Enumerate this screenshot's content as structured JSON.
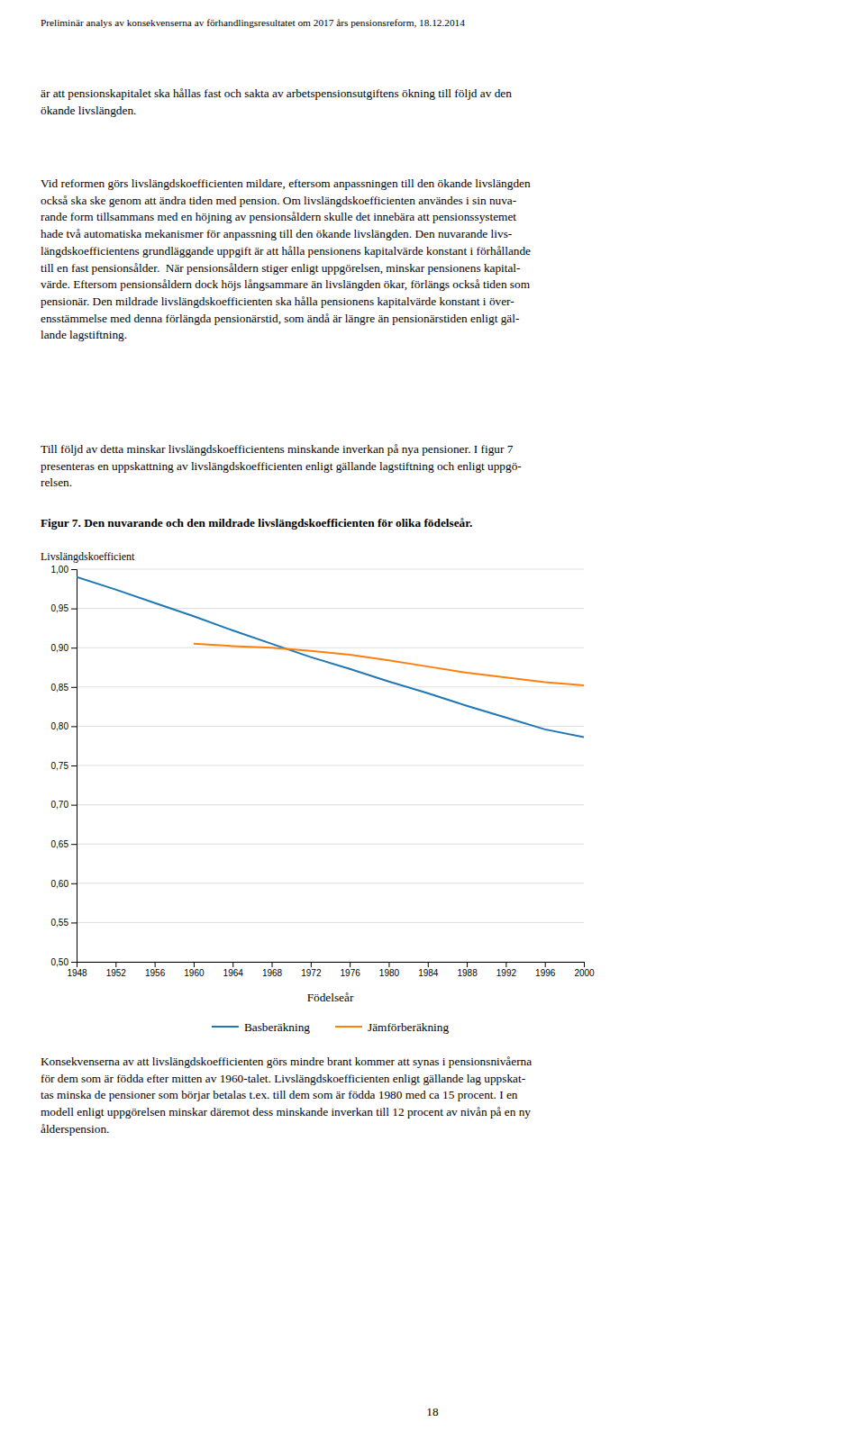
{
  "page": {
    "header": "Preliminär analys av konsekvenserna av förhandlingsresultatet om 2017 års pensionsreform, 18.12.2014",
    "text_before_chart": [
      [
        "är att pensionskapitalet ska hållas fast och sakta av arbetspensionsutgiftens ökning till följd av den",
        "ökande livslängden."
      ],
      [
        "Vid reformen görs livslängdskoefficienten mildare, eftersom anpassningen till den ökande livslängden",
        "också ska ske genom att ändra tiden med pension. Om livslängdskoefficienten användes i sin nuva-",
        "rande form tillsammans med en höjning av pensionsåldern skulle det innebära att pensionssystemet",
        "hade två automatiska mekanismer för anpassning till den ökande livslängden. Den nuvarande livs-",
        "längdskoefficientens grundläggande uppgift är att hålla pensionens kapitalvärde konstant i förhållande",
        "till en fast pensionsålder.  När pensionsåldern stiger enligt uppgörelsen, minskar pensionens kapital-",
        "värde. Eftersom pensionsåldern dock höjs långsammare än livslängden ökar, förlängs också tiden som",
        "pensionär. Den mildrade livslängdskoefficienten ska hålla pensionens kapitalvärde konstant i över-",
        "ensstämmelse med denna förlängda pensionärstid, som ändå är längre än pensionärstiden enligt gäl-",
        "lande lagstiftning."
      ],
      [
        "Till följd av detta minskar livslängdskoefficientens minskande inverkan på nya pensioner. I figur 7",
        "presenteras en uppskattning av livslängdskoefficienten enligt gällande lagstiftning och enligt uppgö-",
        "relsen."
      ]
    ],
    "text_after_chart": [
      [
        "Konsekvenserna av att livslängdskoefficienten görs mindre brant kommer att synas i pensionsnivåerna",
        "för dem som är födda efter mitten av 1960-talet. Livslängdskoefficienten enligt gällande lag uppskat-",
        "tas minska de pensioner som börjar betalas t.ex. till dem som är födda 1980 med ca 15 procent. I en",
        "modell enligt uppgörelsen minskar däremot dess minskande inverkan till 12 procent av nivån på en ny",
        "ålderspension."
      ]
    ],
    "footer": "18"
  },
  "chart_data": {
    "type": "line",
    "title": "Figur 7. Den nuvarande och den mildrade livslängdskoefficienten för olika födelseår.",
    "ylabel": "Livslängdskoefficient",
    "xlabel": "Födelseår",
    "x": [
      1948,
      1952,
      1956,
      1960,
      1964,
      1968,
      1972,
      1976,
      1980,
      1984,
      1988,
      1992,
      1996,
      2000
    ],
    "series": [
      {
        "name": "Basberäkning",
        "values": [
          0.99,
          0.974,
          0.957,
          0.94,
          0.922,
          0.905,
          0.888,
          0.873,
          0.857,
          0.842,
          0.826,
          0.811,
          0.796,
          0.786
        ]
      },
      {
        "name": "Jämförberäkning",
        "values": [
          null,
          null,
          null,
          0.905,
          0.902,
          0.9,
          0.896,
          0.891,
          0.884,
          0.876,
          0.868,
          0.862,
          0.856,
          0.852
        ]
      }
    ],
    "xlim": [
      1948,
      2000
    ],
    "xticks": [
      1948,
      1952,
      1956,
      1960,
      1964,
      1968,
      1972,
      1976,
      1980,
      1984,
      1988,
      1992,
      1996,
      2000
    ],
    "ylim": [
      0.5,
      1.0
    ],
    "yticks": [
      {
        "value": 1.0,
        "label": "1,00"
      },
      {
        "value": 0.95,
        "label": "0,95"
      },
      {
        "value": 0.9,
        "label": "0,90"
      },
      {
        "value": 0.85,
        "label": "0,85"
      },
      {
        "value": 0.8,
        "label": "0,80"
      },
      {
        "value": 0.75,
        "label": "0,75"
      },
      {
        "value": 0.7,
        "label": "0,70"
      },
      {
        "value": 0.65,
        "label": "0,65"
      },
      {
        "value": 0.6,
        "label": "0,60"
      },
      {
        "value": 0.55,
        "label": "0,55"
      },
      {
        "value": 0.5,
        "label": "0,50"
      }
    ],
    "grid": true,
    "legend": "bottom"
  }
}
